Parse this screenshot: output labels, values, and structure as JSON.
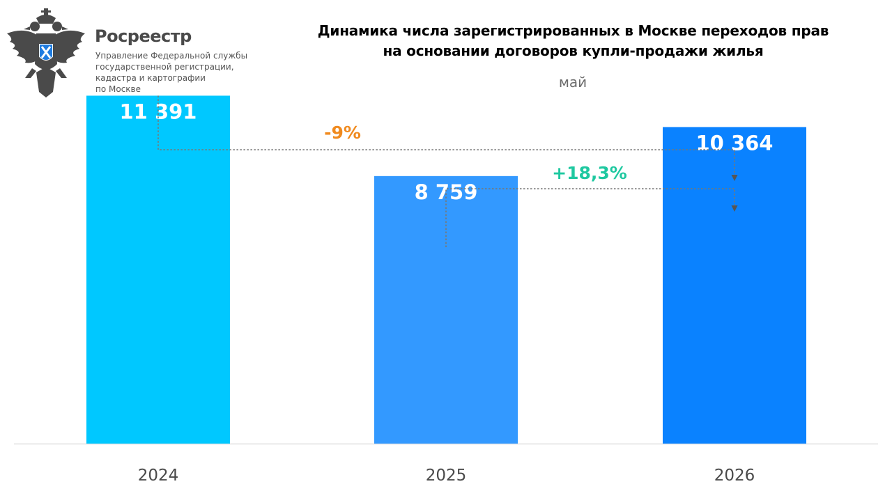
{
  "header": {
    "org_name": "Росреестр",
    "org_sub_lines": [
      "Управление Федеральной службы",
      "государственной регистрации,",
      "кадастра и картографии",
      "по Москве"
    ],
    "logo_icon": "double-headed-eagle-emblem"
  },
  "chart_data": {
    "type": "bar",
    "title_lines": [
      "Динамика числа зарегистрированных в Москве переходов прав",
      "на основании договоров купли-продажи жилья"
    ],
    "subtitle": "май",
    "categories": [
      "2024",
      "2025",
      "2026"
    ],
    "values": [
      11391,
      8759,
      10364
    ],
    "value_labels": [
      "11 391",
      "8 759",
      "10 364"
    ],
    "bar_colors": [
      "#00c8ff",
      "#3399ff",
      "#0a82ff"
    ],
    "ylim": [
      0,
      12700
    ],
    "grid": false,
    "axis_color": "#e0e0e0",
    "annotations": [
      {
        "label": "-9%",
        "color": "#f08a1e",
        "from_category": "2024",
        "to_category": "2026"
      },
      {
        "label": "+18,3%",
        "color": "#1ec8a0",
        "from_category": "2025",
        "to_category": "2026"
      }
    ]
  }
}
